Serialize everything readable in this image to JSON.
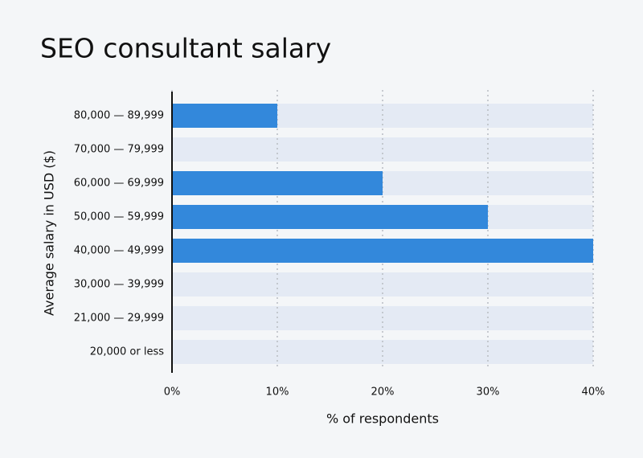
{
  "chart_data": {
    "type": "bar",
    "orientation": "horizontal",
    "title": "SEO consultant salary",
    "categories": [
      "80,000 — 89,999",
      "70,000 — 79,999",
      "60,000 — 69,999",
      "50,000 — 59,999",
      "40,000 — 49,999",
      "30,000 — 39,999",
      "21,000 — 29,999",
      "20,000 or less"
    ],
    "values": [
      10,
      0,
      20,
      30,
      40,
      0,
      0,
      0
    ],
    "color": "#3388db",
    "xlabel": "% of respondents",
    "ylabel": "Average salary in USD ($)",
    "xlim": [
      0,
      40
    ],
    "xticks": [
      {
        "value": 0,
        "label": "0%"
      },
      {
        "value": 10,
        "label": "10%"
      },
      {
        "value": 20,
        "label": "20%"
      },
      {
        "value": 30,
        "label": "30%"
      },
      {
        "value": 40,
        "label": "40%"
      }
    ],
    "grid": true
  }
}
